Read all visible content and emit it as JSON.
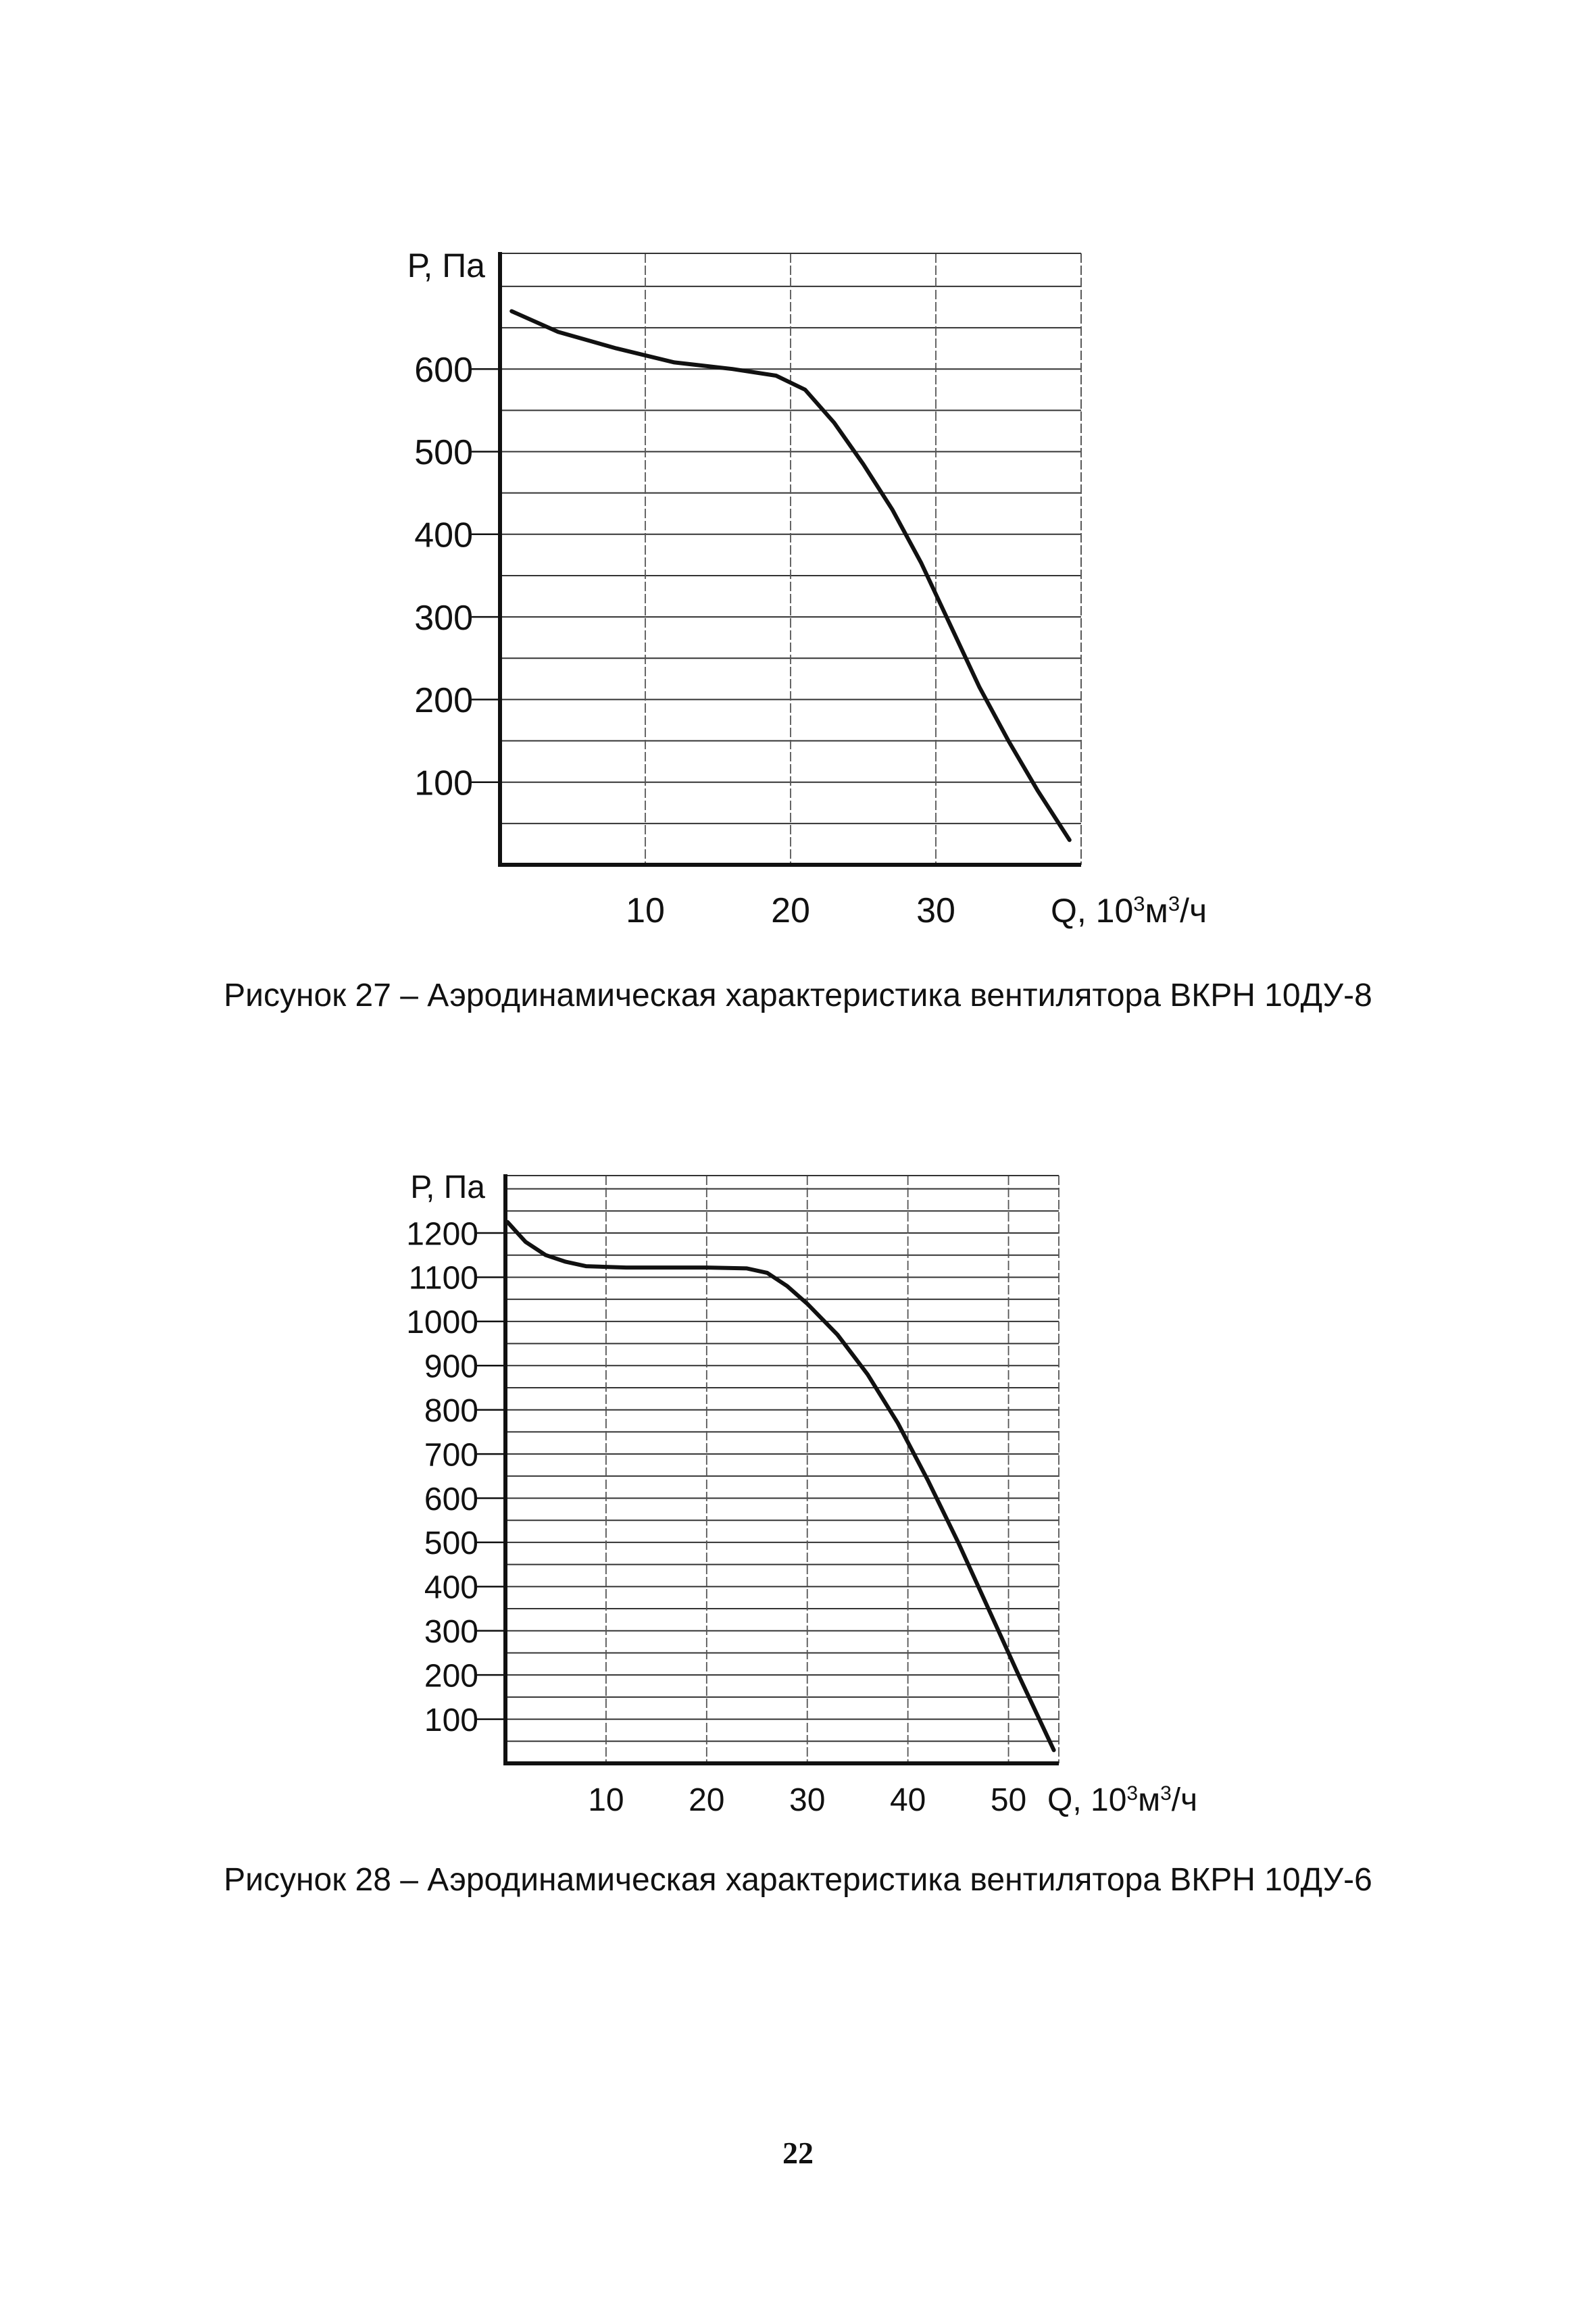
{
  "page_number": "22",
  "chart_data": [
    {
      "type": "line",
      "caption": "Рисунок 27 – Аэродинамическая характеристика вентилятора ВКРН 10ДУ-8",
      "ylabel": "Р, Па",
      "xlabel_prefix": "Q, 10",
      "xlabel_sup1": "3",
      "xlabel_mid": "м",
      "xlabel_sup2": "3",
      "xlabel_suffix": "/ч",
      "xlim": [
        0,
        40
      ],
      "ylim": [
        0,
        740
      ],
      "x_ticks": [
        10,
        20,
        30
      ],
      "y_ticks": [
        100,
        200,
        300,
        400,
        500,
        600
      ],
      "x_grid_step": 10,
      "y_grid_step": 50,
      "series": [
        {
          "name": "ВКРН 10ДУ-8",
          "x": [
            0.8,
            4,
            8,
            12,
            16,
            19,
            21,
            23,
            25,
            27,
            29,
            31,
            33,
            35,
            37,
            39.2
          ],
          "y": [
            670,
            645,
            625,
            608,
            600,
            592,
            575,
            535,
            485,
            430,
            365,
            290,
            215,
            150,
            90,
            30
          ]
        }
      ]
    },
    {
      "type": "line",
      "caption": "Рисунок 28 – Аэродинамическая характеристика вентилятора ВКРН 10ДУ-6",
      "ylabel": "Р, Па",
      "xlabel_prefix": "Q, 10",
      "xlabel_sup1": "3",
      "xlabel_mid": "м",
      "xlabel_sup2": "3",
      "xlabel_suffix": "/ч",
      "xlim": [
        0,
        55
      ],
      "ylim": [
        0,
        1330
      ],
      "x_ticks": [
        10,
        20,
        30,
        40,
        50
      ],
      "y_ticks": [
        100,
        200,
        300,
        400,
        500,
        600,
        700,
        800,
        900,
        1000,
        1100,
        1200
      ],
      "x_grid_step": 10,
      "y_grid_step": 50,
      "series": [
        {
          "name": "ВКРН 10ДУ-6",
          "x": [
            0.2,
            2,
            4,
            6,
            8,
            12,
            16,
            20,
            24,
            26,
            28,
            30,
            33,
            36,
            39,
            42,
            45,
            48,
            51,
            54.5
          ],
          "y": [
            1225,
            1180,
            1150,
            1135,
            1125,
            1122,
            1122,
            1122,
            1120,
            1110,
            1080,
            1040,
            970,
            880,
            770,
            640,
            500,
            350,
            200,
            30
          ]
        }
      ]
    }
  ]
}
